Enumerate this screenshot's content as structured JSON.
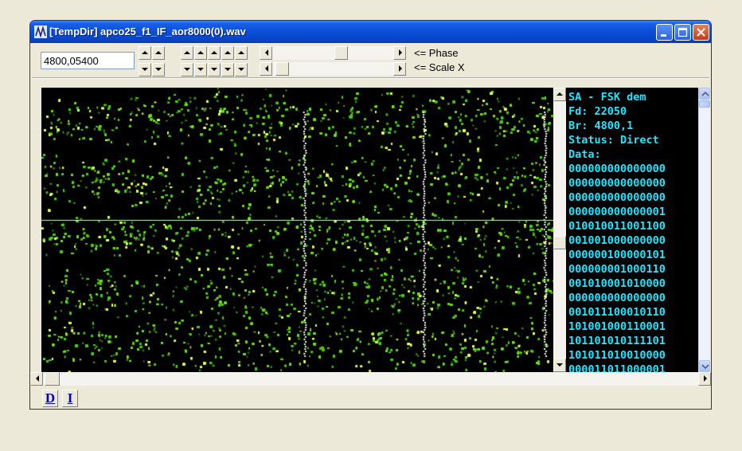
{
  "window": {
    "title": "[TempDir] apco25_f1_IF_aor8000(0).wav"
  },
  "controls": {
    "frequency_value": "4800,05400",
    "phase_label": "<= Phase",
    "scale_label": "<= Scale X",
    "phase_slider_percent": 58,
    "scale_slider_percent": 3
  },
  "decoder": {
    "lines": [
      "SA - FSK dem",
      "Fd: 22050",
      "Br: 4800,1",
      "Status: Direct",
      "Data:",
      "000000000000000",
      "000000000000000",
      "000000000000000",
      "000000000000001",
      "010010011001100",
      "001001000000000",
      "000000100000101",
      "000000001000110",
      "001010001010000",
      "000000000000000",
      "001011100010110",
      "101001000110001",
      "101101010111101",
      "101011010010000",
      "000011011000001"
    ]
  },
  "bottom_buttons": {
    "d_label": "D",
    "i_label": "I"
  },
  "colors": {
    "text_cyan": "#1ee6ff",
    "dot_green": "#4ad010",
    "dot_yellow": "#e8ff60",
    "center_line": "#c8ffc8"
  }
}
